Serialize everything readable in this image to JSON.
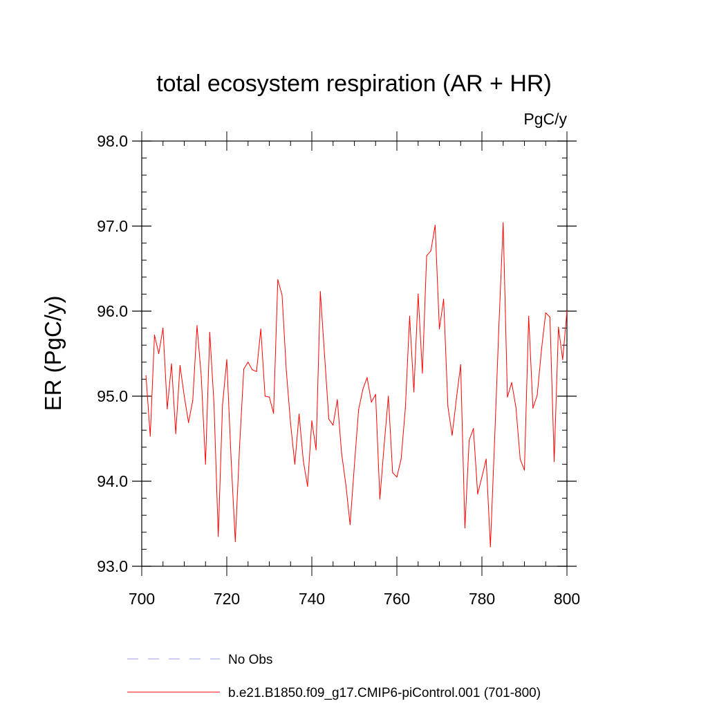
{
  "chart_data": {
    "type": "line",
    "title": "total ecosystem respiration (AR + HR)",
    "units_label": "PgC/y",
    "xlabel": "",
    "ylabel": "ER  (PgC/y)",
    "xlim": [
      700,
      800
    ],
    "ylim": [
      93.0,
      98.0
    ],
    "x_ticks": [
      "700",
      "720",
      "740",
      "760",
      "780",
      "800"
    ],
    "y_ticks": [
      "93.0",
      "94.0",
      "95.0",
      "96.0",
      "97.0",
      "98.0"
    ],
    "legend": [
      {
        "name": "No Obs",
        "style": "dashed",
        "color": "#9b9be0"
      },
      {
        "name": "b.e21.B1850.f09_g17.CMIP6-piControl.001 (701-800)",
        "style": "solid",
        "color": "#ff0000"
      }
    ],
    "series": [
      {
        "name": "b.e21.B1850.f09_g17.CMIP6-piControl.001 (701-800)",
        "color": "#ff0000",
        "x": [
          701,
          702,
          703,
          704,
          705,
          706,
          707,
          708,
          709,
          710,
          711,
          712,
          713,
          714,
          715,
          716,
          717,
          718,
          719,
          720,
          721,
          722,
          723,
          724,
          725,
          726,
          727,
          728,
          729,
          730,
          731,
          732,
          733,
          734,
          735,
          736,
          737,
          738,
          739,
          740,
          741,
          742,
          743,
          744,
          745,
          746,
          747,
          748,
          749,
          750,
          751,
          752,
          753,
          754,
          755,
          756,
          757,
          758,
          759,
          760,
          761,
          762,
          763,
          764,
          765,
          766,
          767,
          768,
          769,
          770,
          771,
          772,
          773,
          774,
          775,
          776,
          777,
          778,
          779,
          780,
          781,
          782,
          783,
          784,
          785,
          786,
          787,
          788,
          789,
          790,
          791,
          792,
          793,
          794,
          795,
          796,
          797,
          798,
          799,
          800
        ],
        "values": [
          95.24,
          94.53,
          95.72,
          95.5,
          95.8,
          94.85,
          95.38,
          94.56,
          95.36,
          95.0,
          94.69,
          94.95,
          95.83,
          95.23,
          94.2,
          95.75,
          94.9,
          93.35,
          94.9,
          95.43,
          94.28,
          93.29,
          94.4,
          95.32,
          95.4,
          95.31,
          95.29,
          95.79,
          95.0,
          94.99,
          94.8,
          96.37,
          96.19,
          95.3,
          94.68,
          94.2,
          94.79,
          94.24,
          93.94,
          94.71,
          94.37,
          96.23,
          95.48,
          94.73,
          94.66,
          94.96,
          94.33,
          93.96,
          93.49,
          94.18,
          94.84,
          95.08,
          95.22,
          94.93,
          95.02,
          93.79,
          94.42,
          95.0,
          94.1,
          94.05,
          94.26,
          94.86,
          95.94,
          95.05,
          96.2,
          95.27,
          96.65,
          96.71,
          97.01,
          95.79,
          96.14,
          94.88,
          94.54,
          94.97,
          95.37,
          93.45,
          94.48,
          94.62,
          93.85,
          94.05,
          94.26,
          93.23,
          94.5,
          95.83,
          97.04,
          94.99,
          95.16,
          94.87,
          94.26,
          94.13,
          95.94,
          94.86,
          95.01,
          95.54,
          95.98,
          95.93,
          94.23,
          95.81,
          95.43,
          96.0
        ]
      }
    ]
  }
}
